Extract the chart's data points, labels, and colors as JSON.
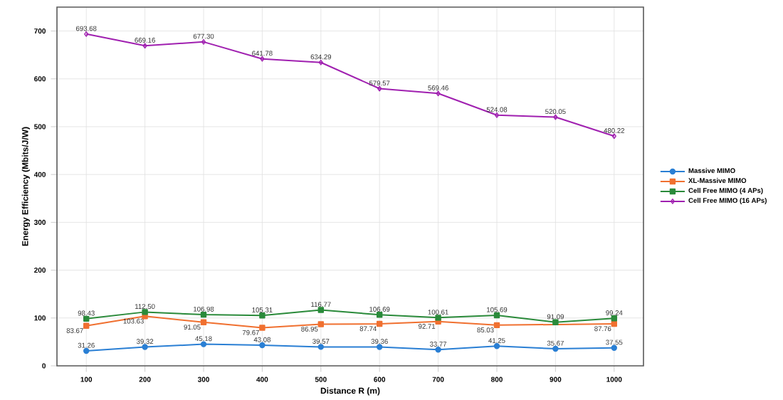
{
  "chart_data": {
    "type": "line",
    "xlabel": "Distance R (m)",
    "ylabel": "Energy Efficiency (Mbits/J/W)",
    "x": [
      100,
      200,
      300,
      400,
      500,
      600,
      700,
      800,
      900,
      1000
    ],
    "xlim": [
      50,
      1050
    ],
    "xticks": [
      100,
      200,
      300,
      400,
      500,
      600,
      700,
      800,
      900,
      1000
    ],
    "ylim": [
      0,
      750
    ],
    "yticks": [
      0,
      100,
      200,
      300,
      400,
      500,
      600,
      700
    ],
    "grid": true,
    "legend": "right",
    "series": [
      {
        "name": "Massive MIMO",
        "color": "#2a7fd4",
        "marker": "circle",
        "values": [
          31.26,
          39.32,
          45.18,
          43.08,
          39.57,
          39.36,
          33.77,
          41.25,
          35.67,
          37.55
        ],
        "value_labels": [
          "31.26",
          "39.32",
          "45.18",
          "43.08",
          "39.57",
          "39.36",
          "33.77",
          "41.25",
          "35.67",
          "37.55"
        ]
      },
      {
        "name": "XL-Massive MIMO",
        "color": "#f07030",
        "marker": "square",
        "values": [
          83.67,
          103.63,
          91.05,
          79.67,
          86.95,
          87.74,
          92.71,
          85.03,
          null,
          87.76
        ],
        "value_labels": [
          "83.67",
          "103.63",
          "91.05",
          "79.67",
          "86.95",
          "87.74",
          "92.71",
          "85.03",
          null,
          "87.76"
        ]
      },
      {
        "name": "Cell Free MIMO (4 APs)",
        "color": "#2a8a3a",
        "marker": "square",
        "values": [
          98.43,
          112.5,
          106.98,
          105.31,
          116.77,
          106.69,
          100.61,
          105.69,
          91.09,
          99.24
        ],
        "value_labels": [
          "98.43",
          "112.50",
          "106.98",
          "105.31",
          "116.77",
          "106.69",
          "100.61",
          "105.69",
          "91.09",
          "99.24"
        ]
      },
      {
        "name": "Cell Free MIMO (16 APs)",
        "color": "#a020b0",
        "marker": "diamond",
        "values": [
          693.68,
          669.16,
          677.3,
          641.78,
          634.29,
          579.57,
          569.46,
          524.08,
          520.05,
          480.22
        ],
        "value_labels": [
          "693.68",
          "669.16",
          "677.30",
          "641.78",
          "634.29",
          "579.57",
          "569.46",
          "524.08",
          "520.05",
          "480.22"
        ]
      }
    ]
  }
}
